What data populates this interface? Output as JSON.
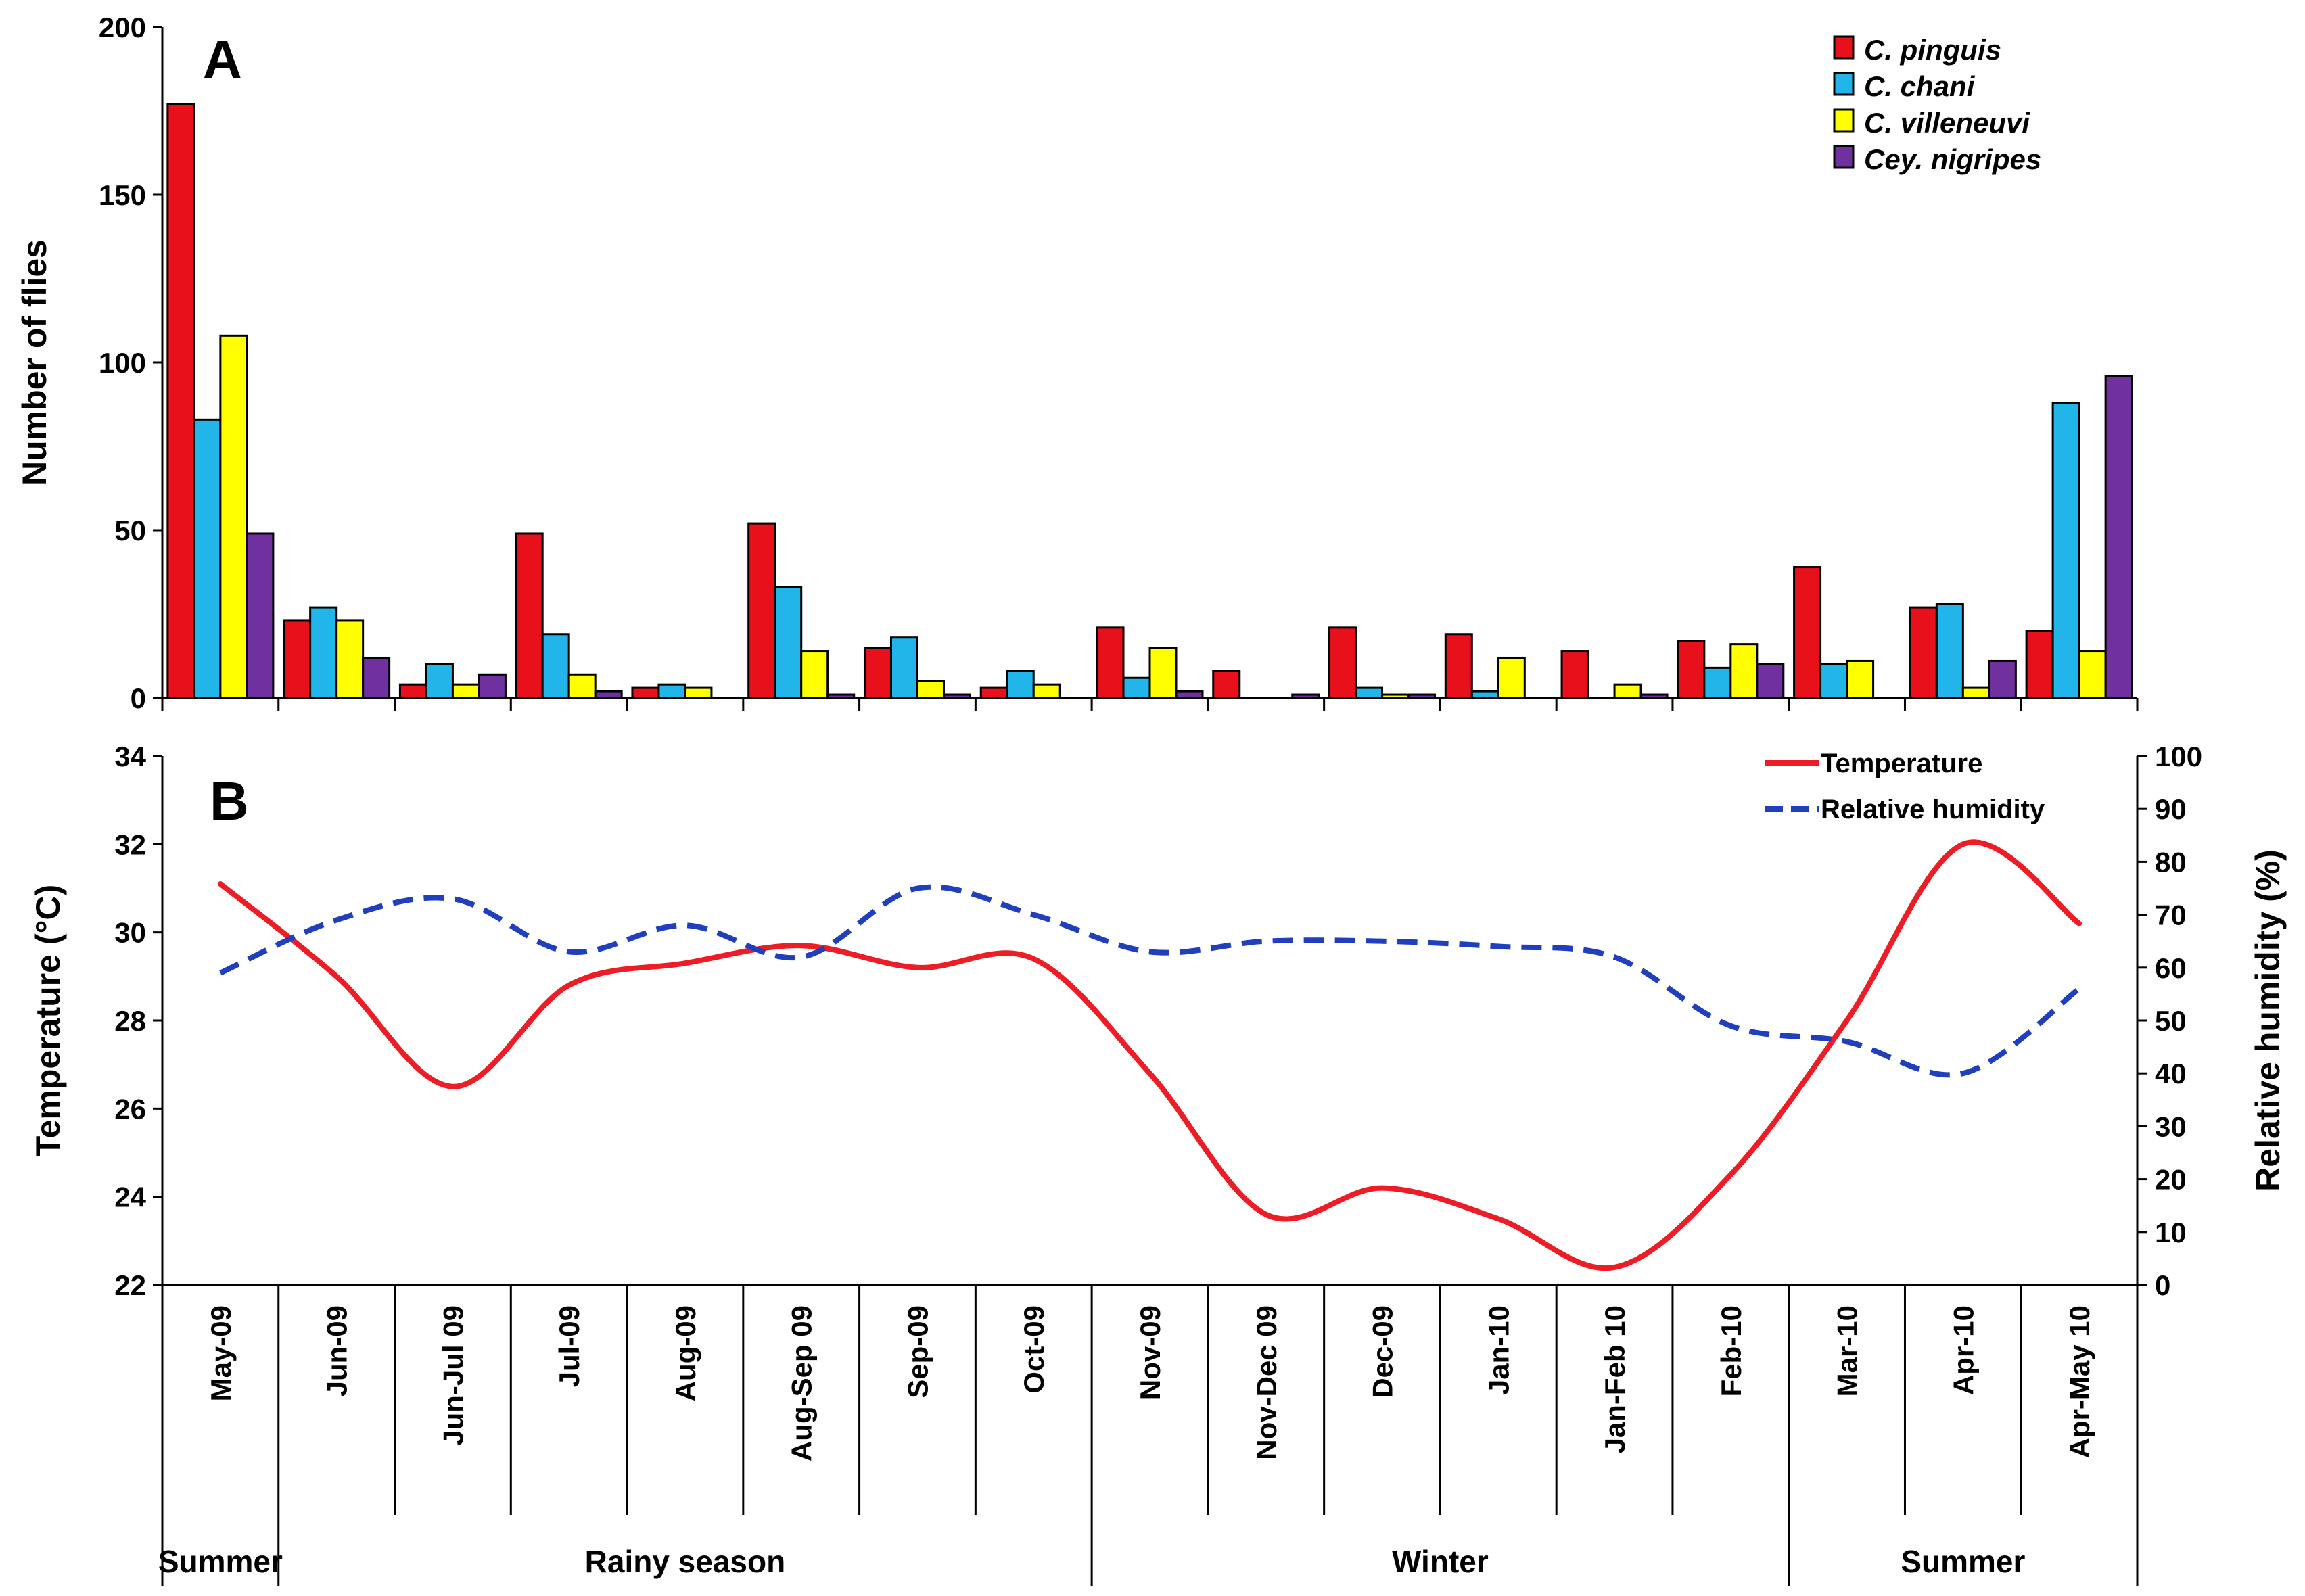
{
  "chart_data": [
    {
      "panel": "A",
      "type": "bar",
      "ylabel": "Number of flies",
      "ylim": [
        0,
        200
      ],
      "yticks": [
        0,
        50,
        100,
        150,
        200
      ],
      "categories": [
        "May-09",
        "Jun-09",
        "Jun-Jul 09",
        "Jul-09",
        "Aug-09",
        "Aug-Sep 09",
        "Sep-09",
        "Oct-09",
        "Nov-09",
        "Nov-Dec 09",
        "Dec-09",
        "Jan-10",
        "Jan-Feb 10",
        "Feb-10",
        "Mar-10",
        "Apr-10",
        "Apr-May 10"
      ],
      "legend_position": "top-right",
      "series": [
        {
          "name": "C. pinguis",
          "color": "#e8101a",
          "values": [
            177,
            23,
            4,
            49,
            3,
            52,
            15,
            3,
            21,
            8,
            21,
            19,
            14,
            17,
            39,
            27,
            20
          ]
        },
        {
          "name": "C. chani",
          "color": "#22b5ea",
          "values": [
            83,
            27,
            10,
            19,
            4,
            33,
            18,
            8,
            6,
            0,
            3,
            2,
            0,
            9,
            10,
            28,
            88
          ]
        },
        {
          "name": "C. villeneuvi",
          "color": "#ffff00",
          "values": [
            108,
            23,
            4,
            7,
            3,
            14,
            5,
            4,
            15,
            0,
            1,
            12,
            4,
            16,
            11,
            3,
            14
          ]
        },
        {
          "name": "Cey. nigripes",
          "color": "#7030a0",
          "values": [
            49,
            12,
            7,
            2,
            0,
            1,
            1,
            0,
            2,
            1,
            1,
            0,
            1,
            10,
            0,
            11,
            96
          ]
        }
      ]
    },
    {
      "panel": "B",
      "type": "line",
      "ylabel": "Temperature (°C)",
      "y2label": "Relative humidity (%)",
      "ylim": [
        22,
        34
      ],
      "yticks": [
        22,
        24,
        26,
        28,
        30,
        32,
        34
      ],
      "y2lim": [
        0,
        100
      ],
      "y2ticks": [
        0,
        10,
        20,
        30,
        40,
        50,
        60,
        70,
        80,
        90,
        100
      ],
      "legend_position": "top-right",
      "series": [
        {
          "name": "Temperature",
          "axis": "left",
          "color": "#ee1c25",
          "dash": false,
          "values": [
            31.1,
            29.0,
            26.5,
            28.8,
            29.3,
            29.7,
            29.2,
            29.4,
            26.8,
            23.6,
            24.2,
            23.5,
            22.4,
            24.5,
            28.0,
            32.0,
            30.2
          ]
        },
        {
          "name": "Relative humidity",
          "axis": "right",
          "color": "#1f3fbf",
          "dash": true,
          "values": [
            59,
            69,
            73,
            63,
            68,
            62,
            75,
            70,
            63,
            65,
            65,
            64,
            62,
            49,
            46,
            40,
            56
          ]
        }
      ]
    }
  ],
  "panel_labels": {
    "a": "A",
    "b": "B"
  },
  "seasons": [
    {
      "label": "Summer",
      "from": 0,
      "to": 0
    },
    {
      "label": "Rainy season",
      "from": 1,
      "to": 7
    },
    {
      "label": "Winter",
      "from": 8,
      "to": 13
    },
    {
      "label": "Summer",
      "from": 14,
      "to": 16
    }
  ]
}
